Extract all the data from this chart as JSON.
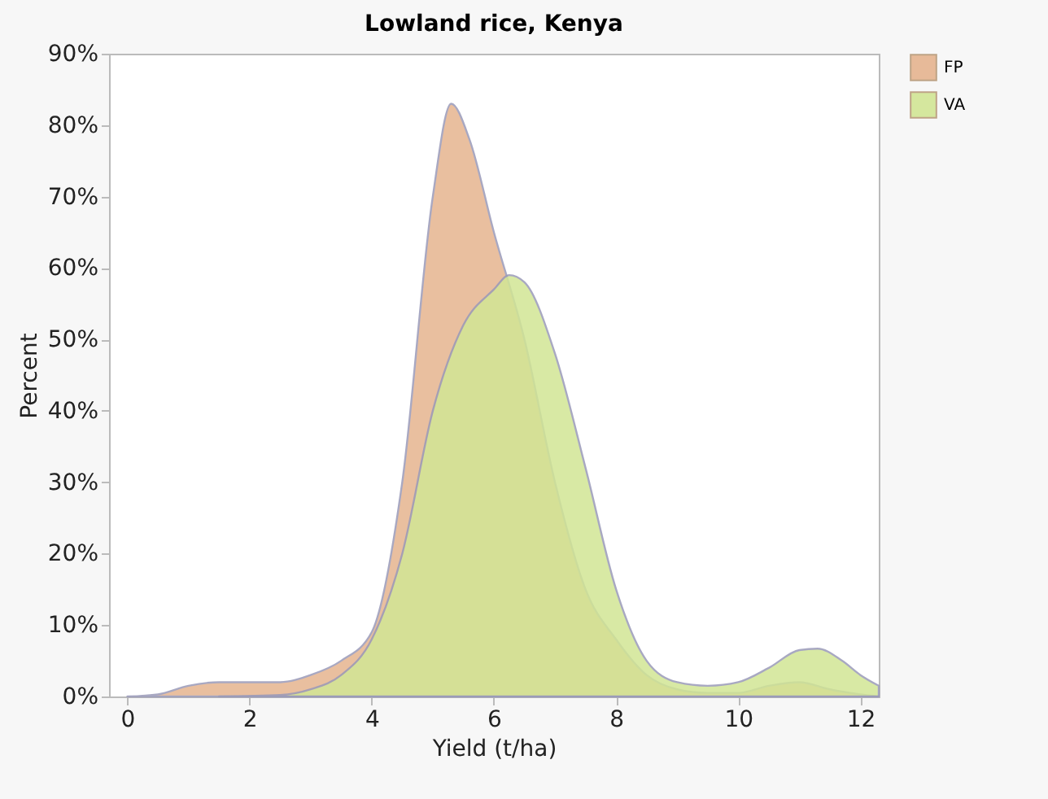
{
  "chart_data": {
    "type": "area",
    "title": "Lowland rice, Kenya",
    "xlabel": "Yield (t/ha)",
    "ylabel": "Percent",
    "xlim": [
      -0.3,
      12.3
    ],
    "xticks": [
      0,
      2,
      4,
      6,
      8,
      10,
      12
    ],
    "ylim": [
      0,
      90
    ],
    "yticks": [
      {
        "value": 0,
        "label": "0%"
      },
      {
        "value": 10,
        "label": "10%"
      },
      {
        "value": 20,
        "label": "20%"
      },
      {
        "value": 30,
        "label": "30%"
      },
      {
        "value": 40,
        "label": "40%"
      },
      {
        "value": 50,
        "label": "50%"
      },
      {
        "value": 60,
        "label": "60%"
      },
      {
        "value": 70,
        "label": "70%"
      },
      {
        "value": 80,
        "label": "80%"
      },
      {
        "value": 90,
        "label": "90%"
      }
    ],
    "grid": false,
    "legend": "top right",
    "series": [
      {
        "name": "FP",
        "color": "#e6b48f",
        "x": [
          0,
          0.5,
          1,
          1.5,
          2,
          2.5,
          3,
          3.5,
          4,
          4.5,
          5,
          5.3,
          5.6,
          6,
          6.5,
          7,
          7.5,
          8,
          8.5,
          9,
          9.5,
          10,
          10.5,
          11,
          11.5,
          12,
          12.3
        ],
        "values": [
          0,
          0.3,
          1.5,
          2,
          2,
          2,
          3,
          5,
          9,
          30,
          70,
          83,
          78,
          65,
          50,
          30,
          15,
          8,
          3,
          1,
          0.5,
          0.5,
          1.5,
          2,
          1,
          0.3,
          0
        ]
      },
      {
        "name": "VA",
        "color": "#d2e695",
        "x": [
          1.5,
          2.5,
          3,
          3.5,
          4,
          4.5,
          5,
          5.5,
          6,
          6.25,
          6.5,
          7,
          7.5,
          8,
          8.5,
          9,
          9.5,
          10,
          10.5,
          11,
          11.3,
          11.7,
          12,
          12.3
        ],
        "values": [
          0,
          0.2,
          1,
          3,
          8,
          20,
          40,
          52,
          57,
          59,
          58,
          48,
          32,
          15,
          5,
          2,
          1.5,
          2,
          4,
          6.5,
          6.7,
          5,
          3,
          1.5
        ]
      }
    ]
  }
}
